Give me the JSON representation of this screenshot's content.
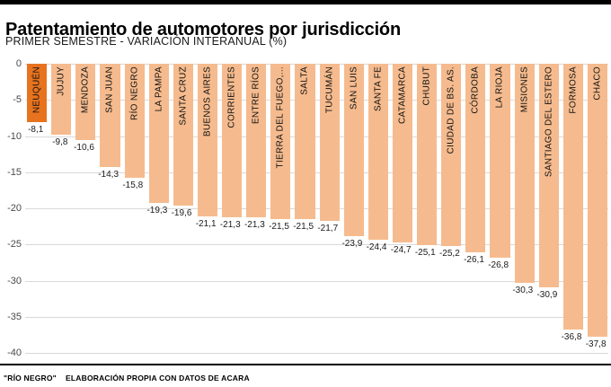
{
  "header": {
    "title": "Patentamiento de automotores por jurisdicción",
    "subtitle": "PRIMER SEMESTRE - VARIACIÓN INTERANUAL (%)"
  },
  "footer": {
    "source": "\"RÍO NEGRO\"",
    "credit": "ELABORACIÓN PROPIA CON DATOS DE ACARA"
  },
  "colors": {
    "bar": "#f5bb8e",
    "bar_highlight": "#e8731e",
    "gridline": "#d9d9d9",
    "top_accent": "#000000"
  },
  "chart_data": {
    "type": "bar",
    "title": "Patentamiento de automotores por jurisdicción",
    "subtitle": "PRIMER SEMESTRE - VARIACIÓN INTERANUAL (%)",
    "orientation": "vertical",
    "categories": [
      "NEUQUÉN",
      "JUJUY",
      "MENDOZA",
      "SAN JUAN",
      "RÍO NEGRO",
      "LA PAMPA",
      "SANTA CRUZ",
      "BUENOS AIRES",
      "CORRIENTES",
      "ENTRE RÍOS",
      "TIERRA DEL FUEGO,...",
      "SALTA",
      "TUCUMÁN",
      "SAN LUIS",
      "SANTA FE",
      "CATAMARCA",
      "CHUBUT",
      "CIUDAD DE BS. AS.",
      "CÓRDOBA",
      "LA RIOJA",
      "MISIONES",
      "SANTIAGO DEL ESTERO",
      "FORMOSA",
      "CHACO"
    ],
    "values": [
      -8.1,
      -9.8,
      -10.6,
      -14.3,
      -15.8,
      -19.3,
      -19.6,
      -21.1,
      -21.3,
      -21.3,
      -21.5,
      -21.5,
      -21.7,
      -23.9,
      -24.4,
      -24.7,
      -25.1,
      -25.2,
      -26.1,
      -26.8,
      -30.3,
      -30.9,
      -36.8,
      -37.8
    ],
    "highlight_index": 0,
    "xlabel": "",
    "ylabel": "",
    "ylim": [
      0,
      -40
    ],
    "yticks": [
      0,
      -5,
      -10,
      -15,
      -20,
      -25,
      -30,
      -35,
      -40
    ],
    "grid": true,
    "legend": false,
    "value_decimal_separator": ","
  }
}
